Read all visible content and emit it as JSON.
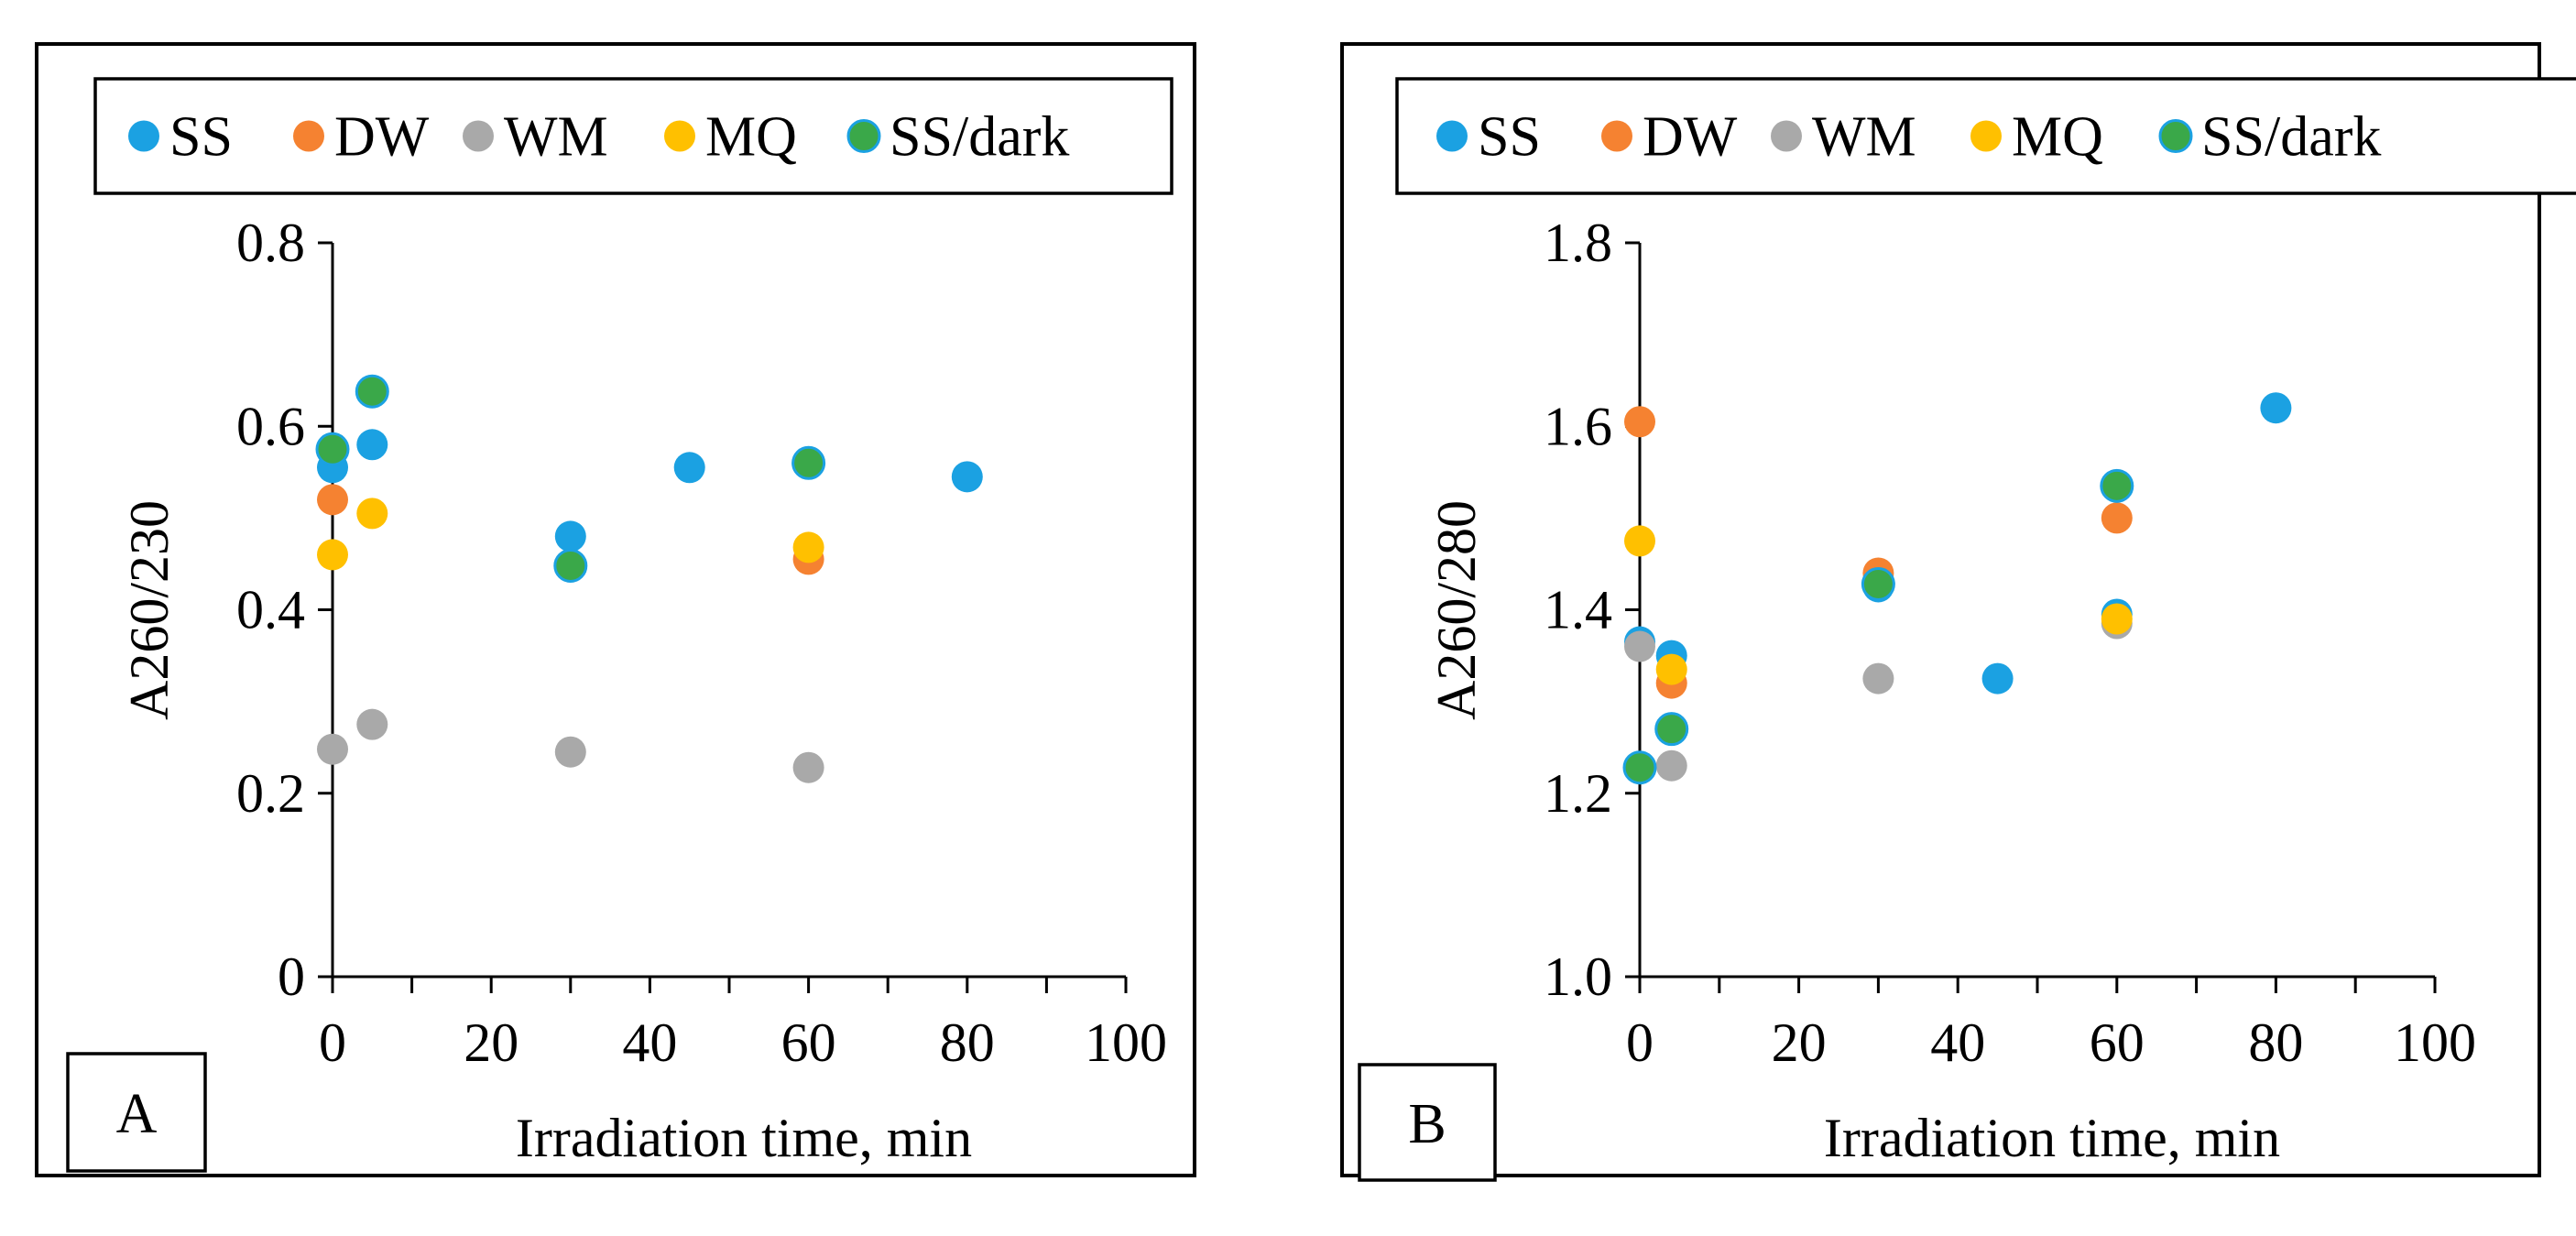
{
  "chart_data": [
    {
      "type": "scatter",
      "panel_letter": "A",
      "title": "",
      "xlabel": "Irradiation  time,  min",
      "ylabel": "A260/230",
      "xlim": [
        0,
        100
      ],
      "ylim": [
        0,
        0.8
      ],
      "x_ticks": [
        "0",
        "20",
        "40",
        "60",
        "80",
        "100"
      ],
      "y_ticks": [
        "0",
        "0.2",
        "0.4",
        "0.6",
        "0.8"
      ],
      "legend": [
        "SS",
        "DW",
        "WM",
        "MQ",
        "SS/dark"
      ],
      "series": [
        {
          "name": "SS",
          "color": "#1ba1e2",
          "points": [
            [
              0,
              0.555
            ],
            [
              5,
              0.58
            ],
            [
              30,
              0.48
            ],
            [
              45,
              0.555
            ],
            [
              60,
              0.56
            ],
            [
              80,
              0.545
            ]
          ]
        },
        {
          "name": "DW",
          "color": "#f58231",
          "points": [
            [
              0,
              0.52
            ],
            [
              60,
              0.455
            ]
          ]
        },
        {
          "name": "WM",
          "color": "#a9a9a9",
          "points": [
            [
              0,
              0.248
            ],
            [
              5,
              0.275
            ],
            [
              30,
              0.245
            ],
            [
              60,
              0.228
            ]
          ]
        },
        {
          "name": "MQ",
          "color": "#ffc000",
          "points": [
            [
              0,
              0.46
            ],
            [
              5,
              0.505
            ],
            [
              60,
              0.468
            ]
          ]
        },
        {
          "name": "SS/dark",
          "color": "#3aa849",
          "edge": "#1ba1e2",
          "points": [
            [
              0,
              0.575
            ],
            [
              5,
              0.638
            ],
            [
              30,
              0.448
            ],
            [
              60,
              0.56
            ]
          ]
        }
      ]
    },
    {
      "type": "scatter",
      "panel_letter": "B",
      "title": "",
      "xlabel": "Irradiation  time,  min",
      "ylabel": "A260/280",
      "xlim": [
        0,
        100
      ],
      "ylim": [
        1.0,
        1.8
      ],
      "x_ticks": [
        "0",
        "20",
        "40",
        "60",
        "80",
        "100"
      ],
      "y_ticks": [
        "1.0",
        "1.2",
        "1.4",
        "1.6",
        "1.8"
      ],
      "legend": [
        "SS",
        "DW",
        "WM",
        "MQ",
        "SS/dark"
      ],
      "series": [
        {
          "name": "SS",
          "color": "#1ba1e2",
          "points": [
            [
              0,
              1.365
            ],
            [
              4,
              1.35
            ],
            [
              30,
              1.425
            ],
            [
              45,
              1.325
            ],
            [
              60,
              1.395
            ],
            [
              80,
              1.62
            ]
          ]
        },
        {
          "name": "DW",
          "color": "#f58231",
          "points": [
            [
              0,
              1.605
            ],
            [
              4,
              1.32
            ],
            [
              30,
              1.44
            ],
            [
              60,
              1.5
            ]
          ]
        },
        {
          "name": "WM",
          "color": "#a9a9a9",
          "points": [
            [
              0,
              1.36
            ],
            [
              4,
              1.23
            ],
            [
              30,
              1.325
            ],
            [
              60,
              1.385
            ]
          ]
        },
        {
          "name": "MQ",
          "color": "#ffc000",
          "points": [
            [
              0,
              1.475
            ],
            [
              4,
              1.335
            ],
            [
              60,
              1.39
            ]
          ]
        },
        {
          "name": "SS/dark",
          "color": "#3aa849",
          "edge": "#1ba1e2",
          "points": [
            [
              0,
              1.228
            ],
            [
              4,
              1.27
            ],
            [
              30,
              1.428
            ],
            [
              60,
              1.535
            ]
          ]
        }
      ]
    }
  ]
}
